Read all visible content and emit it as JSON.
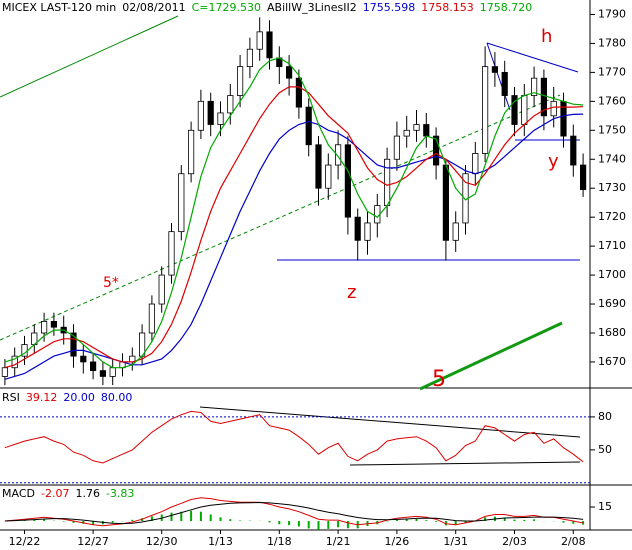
{
  "chart_data": [
    {
      "type": "candlestick",
      "title": "MICEX LAST-120 min",
      "date": "02/08/2011",
      "close_label": "C=1729.530",
      "indicator": "ABillW_3LinesII2",
      "categories": [
        null,
        null,
        "12/22",
        null,
        null,
        null,
        null,
        null,
        null,
        "12/27",
        null,
        null,
        null,
        null,
        null,
        null,
        "12/30",
        null,
        null,
        null,
        null,
        null,
        "1/13",
        null,
        null,
        null,
        null,
        null,
        "1/18",
        null,
        null,
        null,
        null,
        null,
        "1/21",
        null,
        null,
        null,
        null,
        null,
        "1/26",
        null,
        null,
        null,
        null,
        null,
        "1/31",
        null,
        null,
        null,
        null,
        null,
        "2/03",
        null,
        null,
        null,
        null,
        null,
        "2/08",
        null
      ],
      "open": [
        1665,
        1668,
        1672,
        1676,
        1680,
        1684,
        1682,
        1680,
        1672,
        1670,
        1667,
        1665,
        1668,
        1670,
        1672,
        1680,
        1690,
        1700,
        1715,
        1735,
        1750,
        1760,
        1752,
        1756,
        1762,
        1772,
        1778,
        1784,
        1775,
        1772,
        1768,
        1758,
        1745,
        1730,
        1738,
        1745,
        1720,
        1712,
        1718,
        1724,
        1740,
        1748,
        1750,
        1752,
        1748,
        1738,
        1712,
        1718,
        1735,
        1742,
        1772,
        1770,
        1762,
        1752,
        1762,
        1768,
        1755,
        1760,
        1748,
        1738
      ],
      "high": [
        1671,
        1675,
        1679,
        1683,
        1687,
        1687,
        1686,
        1683,
        1676,
        1673,
        1670,
        1671,
        1673,
        1675,
        1683,
        1693,
        1703,
        1718,
        1738,
        1753,
        1764,
        1763,
        1760,
        1766,
        1776,
        1782,
        1789,
        1788,
        1779,
        1776,
        1771,
        1761,
        1748,
        1742,
        1750,
        1748,
        1723,
        1722,
        1728,
        1744,
        1753,
        1755,
        1757,
        1756,
        1751,
        1740,
        1722,
        1738,
        1746,
        1779,
        1777,
        1774,
        1765,
        1766,
        1772,
        1771,
        1765,
        1763,
        1752,
        1742
      ],
      "low": [
        1662,
        1665,
        1669,
        1673,
        1677,
        1679,
        1676,
        1668,
        1666,
        1664,
        1662,
        1662,
        1665,
        1667,
        1669,
        1677,
        1687,
        1697,
        1712,
        1732,
        1747,
        1748,
        1748,
        1752,
        1758,
        1768,
        1774,
        1771,
        1766,
        1762,
        1754,
        1741,
        1724,
        1726,
        1733,
        1714,
        1705,
        1707,
        1713,
        1720,
        1736,
        1744,
        1746,
        1744,
        1733,
        1705,
        1708,
        1714,
        1731,
        1739,
        1765,
        1758,
        1748,
        1748,
        1758,
        1750,
        1751,
        1744,
        1734,
        1727
      ],
      "close": [
        1668,
        1672,
        1676,
        1680,
        1684,
        1682,
        1680,
        1672,
        1670,
        1667,
        1665,
        1668,
        1670,
        1672,
        1680,
        1690,
        1700,
        1715,
        1735,
        1750,
        1760,
        1752,
        1756,
        1762,
        1772,
        1778,
        1784,
        1775,
        1772,
        1768,
        1758,
        1745,
        1730,
        1738,
        1745,
        1720,
        1712,
        1718,
        1724,
        1740,
        1748,
        1750,
        1752,
        1748,
        1738,
        1712,
        1718,
        1735,
        1742,
        1772,
        1770,
        1762,
        1752,
        1762,
        1768,
        1755,
        1760,
        1748,
        1738,
        1729.53
      ],
      "series": [
        {
          "color": "#0000cc",
          "last_label": "1755.598",
          "values": [
            1664,
            1665,
            1666,
            1668,
            1670,
            1672,
            1673,
            1674,
            1674,
            1673,
            1672,
            1671,
            1670,
            1669,
            1669,
            1670,
            1671,
            1674,
            1678,
            1683,
            1690,
            1698,
            1706,
            1714,
            1722,
            1729,
            1736,
            1742,
            1747,
            1750,
            1752,
            1753,
            1752,
            1750,
            1749,
            1747,
            1744,
            1741,
            1738,
            1737,
            1737,
            1738,
            1739,
            1740,
            1741,
            1740,
            1738,
            1736,
            1735,
            1736,
            1738,
            1741,
            1744,
            1747,
            1750,
            1752,
            1754,
            1755,
            1755.5,
            1755.598
          ]
        },
        {
          "color": "#dd0000",
          "last_label": "1758.153",
          "values": [
            1668,
            1669,
            1671,
            1673,
            1675,
            1677,
            1678,
            1678,
            1677,
            1675,
            1673,
            1671,
            1670,
            1670,
            1671,
            1673,
            1677,
            1683,
            1691,
            1701,
            1712,
            1722,
            1730,
            1736,
            1742,
            1748,
            1754,
            1759,
            1763,
            1765,
            1765,
            1763,
            1759,
            1755,
            1752,
            1749,
            1743,
            1737,
            1733,
            1731,
            1732,
            1734,
            1737,
            1740,
            1742,
            1740,
            1736,
            1732,
            1731,
            1735,
            1740,
            1745,
            1749,
            1752,
            1755,
            1757,
            1758,
            1758,
            1758,
            1758.153
          ]
        },
        {
          "color": "#00aa00",
          "last_label": "1758.720",
          "values": [
            1670,
            1671,
            1673,
            1676,
            1679,
            1681,
            1681,
            1679,
            1676,
            1673,
            1670,
            1668,
            1668,
            1669,
            1672,
            1677,
            1684,
            1694,
            1706,
            1720,
            1734,
            1744,
            1750,
            1755,
            1760,
            1765,
            1771,
            1774,
            1775,
            1773,
            1769,
            1762,
            1752,
            1745,
            1741,
            1736,
            1728,
            1722,
            1720,
            1724,
            1730,
            1737,
            1744,
            1748,
            1747,
            1738,
            1730,
            1726,
            1728,
            1738,
            1748,
            1756,
            1760,
            1762,
            1763,
            1762,
            1761,
            1760,
            1759,
            1758.72
          ]
        }
      ],
      "ylim": [
        1661,
        1795
      ],
      "yticks": [
        1670,
        1680,
        1690,
        1700,
        1710,
        1720,
        1730,
        1740,
        1750,
        1760,
        1770,
        1780,
        1790
      ],
      "annotations": [
        "h",
        "y",
        "z",
        "5*",
        "5"
      ]
    },
    {
      "type": "line",
      "title": "RSI",
      "last_label": "39.12",
      "color": "#dd0000",
      "level_color": "#0000cc",
      "levels": [
        {
          "value": 20,
          "label": "20.00"
        },
        {
          "value": 80,
          "label": "80.00"
        }
      ],
      "values": [
        52,
        55,
        58,
        60,
        62,
        58,
        55,
        48,
        45,
        40,
        38,
        42,
        46,
        50,
        58,
        66,
        72,
        78,
        82,
        85,
        84,
        76,
        74,
        76,
        78,
        80,
        82,
        72,
        70,
        68,
        62,
        55,
        46,
        52,
        56,
        44,
        40,
        46,
        50,
        58,
        60,
        61,
        62,
        58,
        52,
        40,
        45,
        54,
        58,
        72,
        70,
        64,
        58,
        64,
        66,
        56,
        60,
        52,
        46,
        39.12
      ],
      "ylim": [
        18,
        104.5
      ],
      "yticks": [
        50,
        80
      ]
    },
    {
      "type": "macd",
      "title": "MACD",
      "series": [
        {
          "color": "#dd0000",
          "last_label": "-2.07",
          "values": [
            0,
            1,
            2,
            3,
            4,
            3,
            2,
            0,
            -2,
            -4,
            -5,
            -4,
            -3,
            -1,
            2,
            6,
            10,
            15,
            19,
            23,
            25,
            24,
            22,
            21,
            20,
            20,
            20,
            18,
            15,
            13,
            10,
            6,
            2,
            1,
            1,
            -2,
            -4,
            -3,
            -2,
            1,
            3,
            4,
            5,
            4,
            2,
            -3,
            -4,
            -2,
            0,
            5,
            7,
            7,
            5,
            5,
            6,
            4,
            4,
            2,
            0,
            -2.07
          ]
        },
        {
          "color": "#000000",
          "last_label": "1.76",
          "values": [
            0,
            0.5,
            1,
            1.5,
            2.2,
            2.6,
            2.6,
            2,
            1,
            -0.2,
            -1.5,
            -2.3,
            -2.7,
            -2.3,
            -1,
            1,
            3,
            6,
            9,
            12,
            15,
            17,
            18,
            19,
            19.4,
            19.6,
            19.8,
            19.4,
            18.5,
            17.4,
            15.9,
            13.9,
            11.5,
            9.4,
            7.7,
            5.7,
            3.8,
            2.4,
            1.5,
            1.4,
            1.7,
            2.2,
            2.8,
            3.1,
            2.9,
            1.7,
            0.5,
            0,
            0,
            1,
            2.2,
            3.2,
            3.5,
            3.8,
            4.2,
            4.2,
            4.2,
            3.7,
            2.9,
            1.76
          ]
        }
      ],
      "histogram": {
        "color": "#00aa00",
        "last_label": "-3.83",
        "values": [
          0,
          0.5,
          1,
          1.5,
          1.8,
          0.4,
          -0.6,
          -2,
          -3,
          -3.8,
          -3.5,
          -1.7,
          -0.3,
          1.3,
          3,
          5,
          7,
          9,
          10,
          11,
          10,
          7,
          4,
          2,
          0.6,
          0.4,
          0.2,
          -1.4,
          -3.5,
          -4.4,
          -5.9,
          -7.9,
          -9.5,
          -8.4,
          -6.7,
          -7.7,
          -7.8,
          -5.4,
          -3.5,
          -0.4,
          1.3,
          1.8,
          2.2,
          0.9,
          -0.9,
          -4.7,
          -4.5,
          -2,
          0,
          4,
          4.8,
          3.8,
          1.5,
          1.2,
          1.8,
          -0.2,
          -0.2,
          -1.7,
          -2.9,
          -3.83
        ]
      },
      "ylim": [
        -9.6,
        37.5
      ],
      "yticks": [
        15
      ]
    }
  ]
}
